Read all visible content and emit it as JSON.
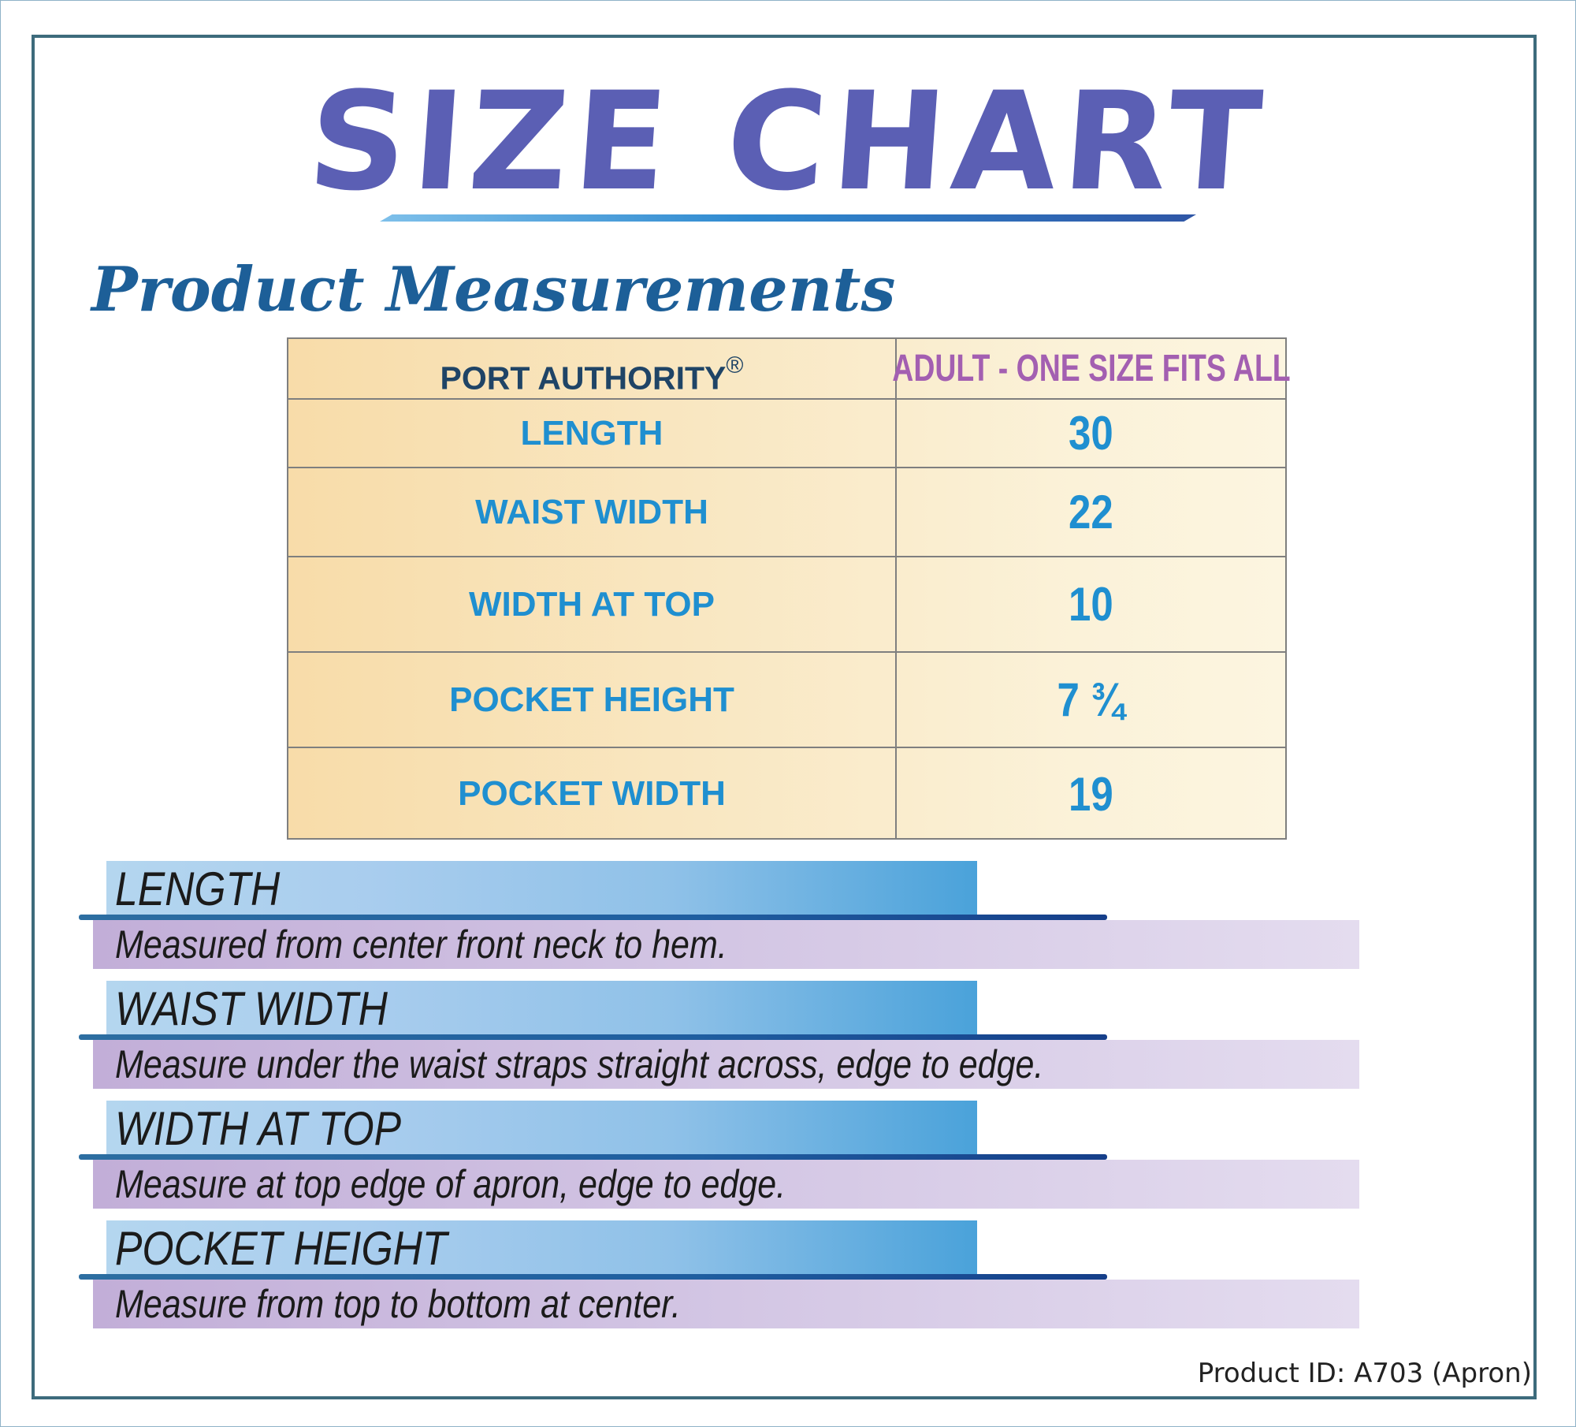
{
  "title": "SIZE CHART",
  "subtitle": "Product Measurements",
  "table": {
    "header_brand": "PORT AUTHORITY",
    "header_brand_mark": "®",
    "header_size": "ADULT - ONE SIZE FITS ALL",
    "rows": [
      {
        "label": "LENGTH",
        "value": "30"
      },
      {
        "label": "WAIST WIDTH",
        "value": "22"
      },
      {
        "label": "WIDTH AT TOP",
        "value": "10"
      },
      {
        "label": "POCKET HEIGHT",
        "value": "7 ¾"
      },
      {
        "label": "POCKET WIDTH",
        "value": "19"
      }
    ]
  },
  "definitions": [
    {
      "term": "LENGTH",
      "description": "Measured from center front neck to hem."
    },
    {
      "term": "WAIST WIDTH",
      "description": "Measure under the waist straps straight across, edge to edge."
    },
    {
      "term": "WIDTH AT TOP",
      "description": "Measure at top edge of apron, edge to edge."
    },
    {
      "term": "POCKET HEIGHT",
      "description": "Measure from top to bottom at center."
    }
  ],
  "footer": {
    "product_id": "Product ID: A703 (Apron)"
  },
  "colors": {
    "title": "#5b5fb4",
    "subtitle": "#1d5f98",
    "table_text": "#1f8fd0",
    "size_header": "#a35fb1",
    "frame": "#3d6b7c"
  }
}
